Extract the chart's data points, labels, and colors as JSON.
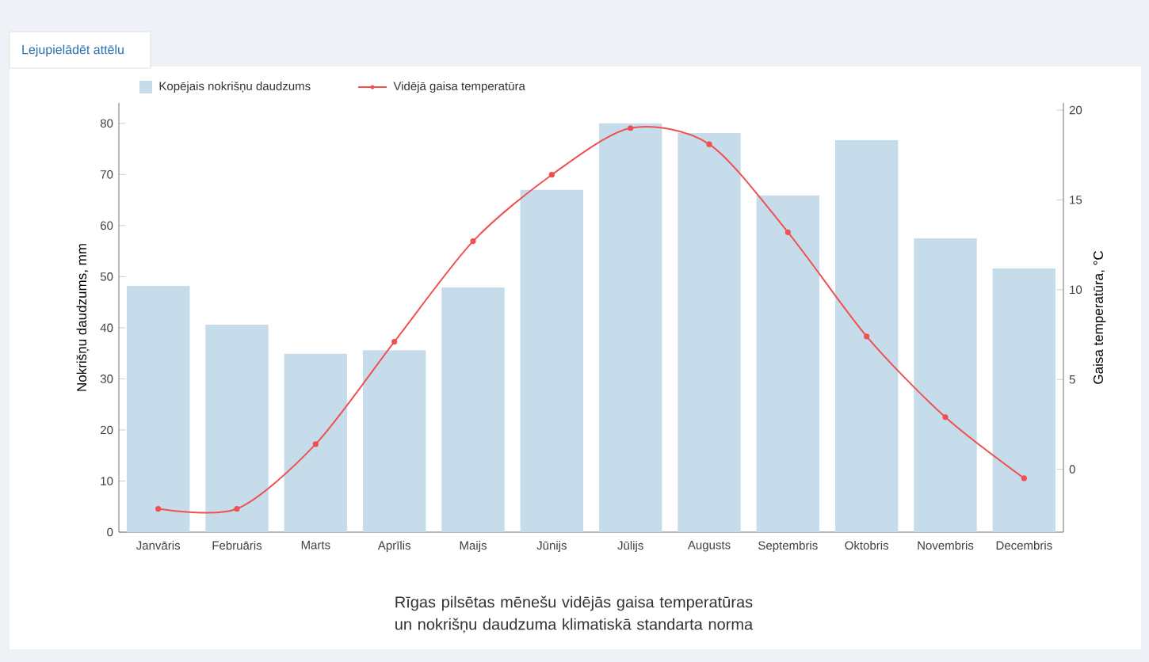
{
  "chart_data": {
    "type": "bar",
    "title": "Rīgas pilsētas mēnešu vidējās gaisa temperatūras un nokrišņu daudzuma klimatiskā standarta norma",
    "annotations": [
      "Lejupielādēt attēlu"
    ],
    "ylabel": "Nokrišņu daudzums, mm",
    "y2label": "Gaisa temperatūra, °C",
    "categories": [
      "Janvāris",
      "Februāris",
      "Marts",
      "Aprīlis",
      "Maijs",
      "Jūnijs",
      "Jūlijs",
      "Augusts",
      "Septembris",
      "Oktobris",
      "Novembris",
      "Decembris"
    ],
    "series": [
      {
        "name": "Kopējais nokrišņu daudzums",
        "color": "#c6dcea",
        "values": [
          48.2,
          40.6,
          34.9,
          35.6,
          47.9,
          67.0,
          80.0,
          78.1,
          65.9,
          76.7,
          57.5,
          51.6
        ]
      },
      {
        "name": "Vidējā gaisa temperatūra",
        "type": "line",
        "axis": "y2",
        "color": "#f05050",
        "marker": "circle",
        "values": [
          -2.2,
          -2.2,
          1.4,
          7.1,
          12.7,
          16.4,
          19.0,
          18.1,
          13.2,
          7.4,
          2.9,
          -0.5
        ]
      }
    ],
    "ylim": [
      0,
      84
    ],
    "yticks": [
      0,
      10,
      20,
      30,
      40,
      50,
      60,
      70,
      80
    ],
    "y2lim": [
      -3.5,
      20.4
    ],
    "y2ticks": [
      0,
      5,
      10,
      15,
      20
    ],
    "legend": "top left"
  }
}
